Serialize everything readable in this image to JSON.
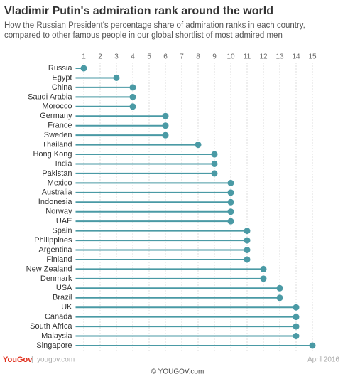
{
  "chart_data": {
    "type": "lollipop",
    "title": "Vladimir Putin's admiration rank around the world",
    "subtitle": [
      "How the Russian President's percentage share of admiration ranks in each country,",
      "compared to other famous people in our global shortlist of most admired men"
    ],
    "categories": [
      "Russia",
      "Egypt",
      "China",
      "Saudi Arabia",
      "Morocco",
      "Germany",
      "France",
      "Sweden",
      "Thailand",
      "Hong Kong",
      "India",
      "Pakistan",
      "Mexico",
      "Australia",
      "Indonesia",
      "Norway",
      "UAE",
      "Spain",
      "Philippines",
      "Argentina",
      "Finland",
      "New Zealand",
      "Denmark",
      "USA",
      "Brazil",
      "UK",
      "Canada",
      "South Africa",
      "Malaysia",
      "Singapore"
    ],
    "values": [
      1,
      3,
      4,
      4,
      4,
      6,
      6,
      6,
      8,
      9,
      9,
      9,
      10,
      10,
      10,
      10,
      10,
      11,
      11,
      11,
      11,
      12,
      12,
      13,
      13,
      14,
      14,
      14,
      14,
      15
    ],
    "color": "#4a9aa5",
    "xlim": [
      0.5,
      15.5
    ],
    "xticks": [
      1,
      2,
      3,
      4,
      5,
      6,
      7,
      8,
      9,
      10,
      11,
      12,
      13,
      14,
      15
    ],
    "grid": true
  },
  "footer": {
    "logo": "YouGov",
    "site": "yougov.com",
    "date": "April 2016",
    "copyright": "© YOUGOV.com"
  }
}
